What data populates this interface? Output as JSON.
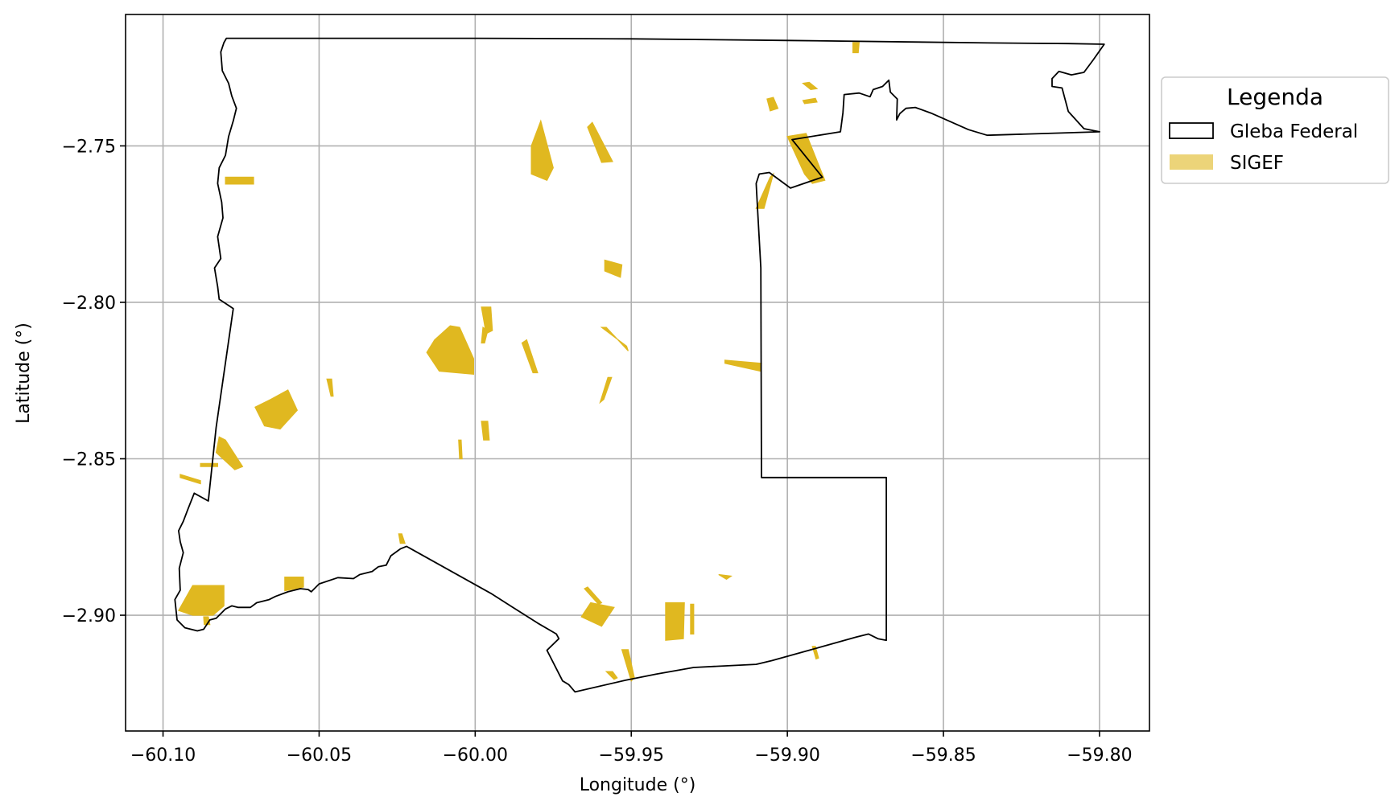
{
  "map": {
    "xlabel": "Longitude (°)",
    "ylabel": "Latitude (°)",
    "xlim": [
      -60.112,
      -59.784
    ],
    "ylim": [
      -2.937,
      -2.708
    ],
    "grid": true,
    "x_ticks": [
      {
        "value": -60.1,
        "label": "−60.10"
      },
      {
        "value": -60.05,
        "label": "−60.05"
      },
      {
        "value": -60.0,
        "label": "−60.00"
      },
      {
        "value": -59.95,
        "label": "−59.95"
      },
      {
        "value": -59.9,
        "label": "−59.90"
      },
      {
        "value": -59.85,
        "label": "−59.85"
      },
      {
        "value": -59.8,
        "label": "−59.80"
      }
    ],
    "y_ticks": [
      {
        "value": -2.75,
        "label": "−2.75"
      },
      {
        "value": -2.8,
        "label": "−2.80"
      },
      {
        "value": -2.85,
        "label": "−2.85"
      },
      {
        "value": -2.9,
        "label": "−2.90"
      }
    ],
    "colors": {
      "boundary": "#000000",
      "parcel": "#e0b820",
      "grid": "#b0b0b0",
      "frame": "#000000",
      "legend_border": "#cccccc"
    },
    "legend": {
      "title": "Legenda",
      "placement": "outside-right-top",
      "items": [
        {
          "label": "Gleba Federal",
          "symbol": "outline-box"
        },
        {
          "label": "SIGEF",
          "symbol": "filled-box"
        }
      ]
    },
    "gleba_federal_boundary": [
      [
        -60.0797,
        -2.7156
      ],
      [
        -60.0,
        -2.7156
      ],
      [
        -59.95,
        -2.7158
      ],
      [
        -59.9,
        -2.7163
      ],
      [
        -59.86,
        -2.7168
      ],
      [
        -59.835,
        -2.7171
      ],
      [
        -59.81,
        -2.7173
      ],
      [
        -59.7985,
        -2.7175
      ],
      [
        -59.802,
        -2.7225
      ],
      [
        -59.805,
        -2.7265
      ],
      [
        -59.809,
        -2.7273
      ],
      [
        -59.813,
        -2.7262
      ],
      [
        -59.8152,
        -2.7285
      ],
      [
        -59.8152,
        -2.731
      ],
      [
        -59.812,
        -2.7315
      ],
      [
        -59.81,
        -2.739
      ],
      [
        -59.805,
        -2.7445
      ],
      [
        -59.8,
        -2.7455
      ],
      [
        -59.836,
        -2.7466
      ],
      [
        -59.842,
        -2.7448
      ],
      [
        -59.854,
        -2.7395
      ],
      [
        -59.859,
        -2.7377
      ],
      [
        -59.862,
        -2.738
      ],
      [
        -59.864,
        -2.7397
      ],
      [
        -59.865,
        -2.7417
      ],
      [
        -59.8648,
        -2.735
      ],
      [
        -59.867,
        -2.7328
      ],
      [
        -59.8675,
        -2.729
      ],
      [
        -59.8695,
        -2.731
      ],
      [
        -59.8725,
        -2.732
      ],
      [
        -59.8735,
        -2.7343
      ],
      [
        -59.877,
        -2.7331
      ],
      [
        -59.8818,
        -2.7336
      ],
      [
        -59.8822,
        -2.7394
      ],
      [
        -59.883,
        -2.7455
      ],
      [
        -59.8985,
        -2.748
      ],
      [
        -59.8888,
        -2.76
      ],
      [
        -59.899,
        -2.7635
      ],
      [
        -59.9058,
        -2.7585
      ],
      [
        -59.909,
        -2.759
      ],
      [
        -59.91,
        -2.762
      ],
      [
        -59.9095,
        -2.771
      ],
      [
        -59.9085,
        -2.789
      ],
      [
        -59.9083,
        -2.856
      ],
      [
        -59.8683,
        -2.856
      ],
      [
        -59.8683,
        -2.908
      ],
      [
        -59.871,
        -2.9075
      ],
      [
        -59.874,
        -2.906
      ],
      [
        -59.878,
        -2.907
      ],
      [
        -59.905,
        -2.9145
      ],
      [
        -59.91,
        -2.9157
      ],
      [
        -59.93,
        -2.9167
      ],
      [
        -59.942,
        -2.9188
      ],
      [
        -59.952,
        -2.9208
      ],
      [
        -59.968,
        -2.9245
      ],
      [
        -59.97,
        -2.9222
      ],
      [
        -59.972,
        -2.921
      ],
      [
        -59.977,
        -2.9112
      ],
      [
        -59.9732,
        -2.9075
      ],
      [
        -59.974,
        -2.906
      ],
      [
        -59.98,
        -2.9025
      ],
      [
        -59.995,
        -2.893
      ],
      [
        -60.022,
        -2.878
      ],
      [
        -60.024,
        -2.8788
      ],
      [
        -60.027,
        -2.881
      ],
      [
        -60.0285,
        -2.884
      ],
      [
        -60.031,
        -2.8845
      ],
      [
        -60.033,
        -2.886
      ],
      [
        -60.037,
        -2.887
      ],
      [
        -60.039,
        -2.8883
      ],
      [
        -60.044,
        -2.888
      ],
      [
        -60.05,
        -2.89
      ],
      [
        -60.0525,
        -2.8925
      ],
      [
        -60.0535,
        -2.8918
      ],
      [
        -60.056,
        -2.8915
      ],
      [
        -60.06,
        -2.8925
      ],
      [
        -60.064,
        -2.894
      ],
      [
        -60.066,
        -2.895
      ],
      [
        -60.07,
        -2.896
      ],
      [
        -60.072,
        -2.8975
      ],
      [
        -60.076,
        -2.8975
      ],
      [
        -60.078,
        -2.897
      ],
      [
        -60.08,
        -2.898
      ],
      [
        -60.083,
        -2.901
      ],
      [
        -60.085,
        -2.9015
      ],
      [
        -60.087,
        -2.9045
      ],
      [
        -60.089,
        -2.905
      ],
      [
        -60.093,
        -2.904
      ],
      [
        -60.0955,
        -2.9015
      ],
      [
        -60.0962,
        -2.895
      ],
      [
        -60.0945,
        -2.892
      ],
      [
        -60.0948,
        -2.885
      ],
      [
        -60.0935,
        -2.88
      ],
      [
        -60.0945,
        -2.8765
      ],
      [
        -60.095,
        -2.873
      ],
      [
        -60.0935,
        -2.87
      ],
      [
        -60.092,
        -2.866
      ],
      [
        -60.09,
        -2.861
      ],
      [
        -60.0855,
        -2.8635
      ],
      [
        -60.083,
        -2.84
      ],
      [
        -60.0775,
        -2.802
      ],
      [
        -60.082,
        -2.799
      ],
      [
        -60.0825,
        -2.795
      ],
      [
        -60.0835,
        -2.789
      ],
      [
        -60.0815,
        -2.786
      ],
      [
        -60.0825,
        -2.779
      ],
      [
        -60.0808,
        -2.773
      ],
      [
        -60.0812,
        -2.768
      ],
      [
        -60.0825,
        -2.762
      ],
      [
        -60.082,
        -2.757
      ],
      [
        -60.08,
        -2.753
      ],
      [
        -60.079,
        -2.747
      ],
      [
        -60.0775,
        -2.742
      ],
      [
        -60.0765,
        -2.738
      ],
      [
        -60.078,
        -2.734
      ],
      [
        -60.079,
        -2.73
      ],
      [
        -60.081,
        -2.726
      ],
      [
        -60.0815,
        -2.72
      ],
      [
        -60.0805,
        -2.717
      ],
      [
        -60.0797,
        -2.7156
      ]
    ],
    "sigef_parcels": [
      [
        [
          -59.879,
          -2.717
        ],
        [
          -59.877,
          -2.717
        ],
        [
          -59.8773,
          -2.7202
        ],
        [
          -59.879,
          -2.7202
        ]
      ],
      [
        [
          -59.895,
          -2.73
        ],
        [
          -59.893,
          -2.7297
        ],
        [
          -59.8905,
          -2.7317
        ],
        [
          -59.8925,
          -2.732
        ]
      ],
      [
        [
          -59.895,
          -2.7355
        ],
        [
          -59.891,
          -2.7348
        ],
        [
          -59.8905,
          -2.736
        ],
        [
          -59.8945,
          -2.7365
        ]
      ],
      [
        [
          -59.9065,
          -2.735
        ],
        [
          -59.9045,
          -2.7345
        ],
        [
          -59.903,
          -2.738
        ],
        [
          -59.9055,
          -2.7388
        ]
      ],
      [
        [
          -59.9,
          -2.747
        ],
        [
          -59.894,
          -2.746
        ],
        [
          -59.888,
          -2.761
        ],
        [
          -59.892,
          -2.762
        ],
        [
          -59.8945,
          -2.759
        ]
      ],
      [
        [
          -59.9055,
          -2.76
        ],
        [
          -59.9045,
          -2.759
        ],
        [
          -59.9075,
          -2.77
        ],
        [
          -59.91,
          -2.77
        ]
      ],
      [
        [
          -59.982,
          -2.75
        ],
        [
          -59.979,
          -2.742
        ],
        [
          -59.975,
          -2.757
        ],
        [
          -59.977,
          -2.761
        ],
        [
          -59.982,
          -2.759
        ]
      ],
      [
        [
          -59.964,
          -2.744
        ],
        [
          -59.9625,
          -2.7425
        ],
        [
          -59.956,
          -2.755
        ],
        [
          -59.9595,
          -2.7553
        ]
      ],
      [
        [
          -60.08,
          -2.76
        ],
        [
          -60.071,
          -2.76
        ],
        [
          -60.071,
          -2.7622
        ],
        [
          -60.08,
          -2.7622
        ]
      ],
      [
        [
          -59.9585,
          -2.7865
        ],
        [
          -59.953,
          -2.788
        ],
        [
          -59.9535,
          -2.792
        ],
        [
          -59.9585,
          -2.79
        ]
      ],
      [
        [
          -59.998,
          -2.8015
        ],
        [
          -59.995,
          -2.8015
        ],
        [
          -59.9945,
          -2.809
        ],
        [
          -59.9965,
          -2.81
        ]
      ],
      [
        [
          -59.9975,
          -2.808
        ],
        [
          -59.996,
          -2.809
        ],
        [
          -59.997,
          -2.813
        ],
        [
          -59.998,
          -2.813
        ]
      ],
      [
        [
          -60.005,
          -2.808
        ],
        [
          -60.008,
          -2.8075
        ],
        [
          -60.013,
          -2.812
        ],
        [
          -60.0155,
          -2.816
        ],
        [
          -60.0115,
          -2.822
        ],
        [
          -60.0005,
          -2.823
        ],
        [
          -60.0005,
          -2.818
        ]
      ],
      [
        [
          -59.9835,
          -2.812
        ],
        [
          -59.985,
          -2.813
        ],
        [
          -59.9815,
          -2.8225
        ],
        [
          -59.98,
          -2.8225
        ]
      ],
      [
        [
          -59.958,
          -2.808
        ],
        [
          -59.9595,
          -2.808
        ],
        [
          -59.9515,
          -2.814
        ],
        [
          -59.951,
          -2.8155
        ]
      ],
      [
        [
          -59.92,
          -2.8185
        ],
        [
          -59.92,
          -2.8195
        ],
        [
          -59.9085,
          -2.822
        ],
        [
          -59.9083,
          -2.8195
        ]
      ],
      [
        [
          -60.0655,
          -2.831
        ],
        [
          -60.0705,
          -2.8335
        ],
        [
          -60.0675,
          -2.8395
        ],
        [
          -60.0625,
          -2.8405
        ],
        [
          -60.057,
          -2.8345
        ],
        [
          -60.06,
          -2.828
        ]
      ],
      [
        [
          -60.0475,
          -2.8245
        ],
        [
          -60.046,
          -2.8245
        ],
        [
          -60.0455,
          -2.83
        ],
        [
          -60.0462,
          -2.83
        ]
      ],
      [
        [
          -59.9575,
          -2.824
        ],
        [
          -59.9563,
          -2.824
        ],
        [
          -59.9588,
          -2.831
        ],
        [
          -59.96,
          -2.832
        ]
      ],
      [
        [
          -59.998,
          -2.838
        ],
        [
          -59.996,
          -2.838
        ],
        [
          -59.9955,
          -2.844
        ],
        [
          -59.9973,
          -2.844
        ]
      ],
      [
        [
          -60.0053,
          -2.844
        ],
        [
          -60.0045,
          -2.844
        ],
        [
          -60.0042,
          -2.85
        ],
        [
          -60.005,
          -2.85
        ]
      ],
      [
        [
          -60.082,
          -2.843
        ],
        [
          -60.08,
          -2.844
        ],
        [
          -60.0745,
          -2.8525
        ],
        [
          -60.077,
          -2.8535
        ],
        [
          -60.083,
          -2.848
        ]
      ],
      [
        [
          -60.088,
          -2.8515
        ],
        [
          -60.0825,
          -2.8515
        ],
        [
          -60.0825,
          -2.8525
        ],
        [
          -60.088,
          -2.8525
        ]
      ],
      [
        [
          -60.0945,
          -2.855
        ],
        [
          -60.088,
          -2.857
        ],
        [
          -60.088,
          -2.858
        ],
        [
          -60.0945,
          -2.856
        ]
      ],
      [
        [
          -60.0245,
          -2.874
        ],
        [
          -60.0235,
          -2.874
        ],
        [
          -60.0225,
          -2.877
        ],
        [
          -60.024,
          -2.877
        ]
      ],
      [
        [
          -60.0905,
          -2.8905
        ],
        [
          -60.0805,
          -2.8905
        ],
        [
          -60.0805,
          -2.897
        ],
        [
          -60.084,
          -2.9
        ],
        [
          -60.0905,
          -2.9
        ],
        [
          -60.095,
          -2.8985
        ]
      ],
      [
        [
          -60.087,
          -2.9005
        ],
        [
          -60.0855,
          -2.9005
        ],
        [
          -60.085,
          -2.903
        ],
        [
          -60.0868,
          -2.903
        ]
      ],
      [
        [
          -60.061,
          -2.8878
        ],
        [
          -60.055,
          -2.8878
        ],
        [
          -60.055,
          -2.891
        ],
        [
          -60.061,
          -2.8922
        ]
      ],
      [
        [
          -59.963,
          -2.896
        ],
        [
          -59.9555,
          -2.8975
        ],
        [
          -59.9595,
          -2.9035
        ],
        [
          -59.966,
          -2.9005
        ]
      ],
      [
        [
          -59.965,
          -2.8915
        ],
        [
          -59.964,
          -2.891
        ],
        [
          -59.9595,
          -2.896
        ],
        [
          -59.9605,
          -2.8965
        ]
      ],
      [
        [
          -59.922,
          -2.887
        ],
        [
          -59.918,
          -2.8875
        ],
        [
          -59.9195,
          -2.8885
        ]
      ],
      [
        [
          -59.939,
          -2.896
        ],
        [
          -59.933,
          -2.896
        ],
        [
          -59.9333,
          -2.9075
        ],
        [
          -59.939,
          -2.908
        ]
      ],
      [
        [
          -59.931,
          -2.8965
        ],
        [
          -59.93,
          -2.8965
        ],
        [
          -59.93,
          -2.906
        ],
        [
          -59.931,
          -2.906
        ]
      ],
      [
        [
          -59.953,
          -2.911
        ],
        [
          -59.951,
          -2.911
        ],
        [
          -59.949,
          -2.92
        ],
        [
          -59.95,
          -2.921
        ]
      ],
      [
        [
          -59.958,
          -2.918
        ],
        [
          -59.956,
          -2.918
        ],
        [
          -59.9545,
          -2.92
        ],
        [
          -59.9555,
          -2.9205
        ]
      ],
      [
        [
          -59.892,
          -2.91
        ],
        [
          -59.891,
          -2.91
        ],
        [
          -59.89,
          -2.9137
        ],
        [
          -59.8908,
          -2.914
        ]
      ]
    ]
  }
}
